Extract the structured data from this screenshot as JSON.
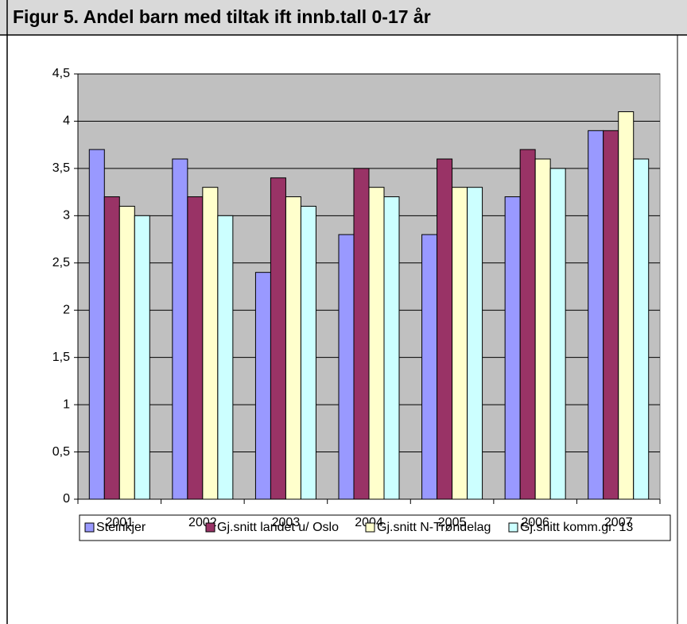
{
  "chart_data": {
    "type": "bar",
    "title": "Figur 5. Andel barn med tiltak ift innb.tall 0-17 år",
    "categories": [
      "2001",
      "2002",
      "2003",
      "2004",
      "2005",
      "2006",
      "2007"
    ],
    "series": [
      {
        "name": "Steinkjer",
        "color": "#9999ff",
        "values": [
          3.7,
          3.6,
          2.4,
          2.8,
          2.8,
          3.2,
          3.9
        ]
      },
      {
        "name": "Gj.snitt landet u/ Oslo",
        "color": "#993366",
        "values": [
          3.2,
          3.2,
          3.4,
          3.5,
          3.6,
          3.7,
          3.9
        ]
      },
      {
        "name": "Gj.snitt N-Trøndelag",
        "color": "#ffffcc",
        "values": [
          3.1,
          3.3,
          3.2,
          3.3,
          3.3,
          3.6,
          4.1
        ]
      },
      {
        "name": "Gj.snitt komm.gr. 13",
        "color": "#ccffff",
        "values": [
          3.0,
          3.0,
          3.1,
          3.2,
          3.3,
          3.5,
          3.6
        ]
      }
    ],
    "ylim": [
      0,
      4.5
    ],
    "yticks": [
      0,
      {
        "value": 0.5,
        "label": "0,5"
      },
      1,
      {
        "value": 1.5,
        "label": "1,5"
      },
      2,
      {
        "value": 2.5,
        "label": "2,5"
      },
      3,
      {
        "value": 3.5,
        "label": "3,5"
      },
      4,
      {
        "value": 4.5,
        "label": "4,5"
      }
    ],
    "grid": true,
    "legend": "bottom"
  }
}
